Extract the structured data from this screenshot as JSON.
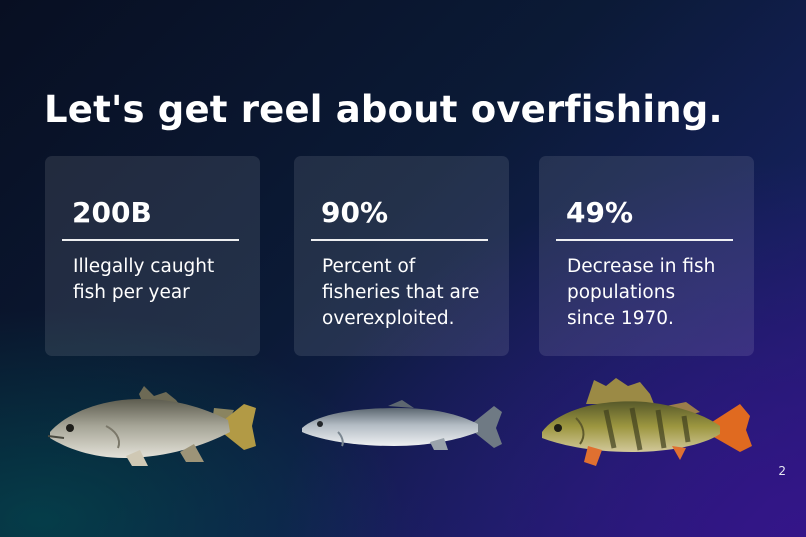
{
  "slide": {
    "title": "Let's get reel about overfishing.",
    "page_number": "2"
  },
  "stats": [
    {
      "value": "200B",
      "description": "Illegally caught\nfish per year"
    },
    {
      "value": "90%",
      "description": "Percent of\nfisheries that are\noverexploited."
    },
    {
      "value": "49%",
      "description": "Decrease in fish\npopulations\nsince 1970."
    }
  ],
  "images": [
    {
      "icon": "barramundi-fish-image"
    },
    {
      "icon": "salmon-fish-image"
    },
    {
      "icon": "perch-fish-image"
    }
  ]
}
